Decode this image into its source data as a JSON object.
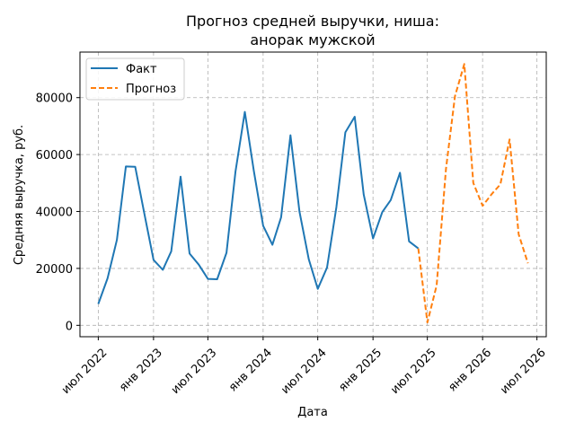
{
  "chart_data": {
    "type": "line",
    "title_lines": [
      "Прогноз средней выручки, ниша:",
      "анорак мужской"
    ],
    "xlabel": "Дата",
    "ylabel": "Средняя выручка, руб.",
    "x_ticks": [
      {
        "label": "июл 2022",
        "date": "2022-07-01"
      },
      {
        "label": "янв 2023",
        "date": "2023-01-01"
      },
      {
        "label": "июл 2023",
        "date": "2023-07-01"
      },
      {
        "label": "янв 2024",
        "date": "2024-01-01"
      },
      {
        "label": "июл 2024",
        "date": "2024-07-01"
      },
      {
        "label": "янв 2025",
        "date": "2025-01-01"
      },
      {
        "label": "июл 2025",
        "date": "2025-07-01"
      },
      {
        "label": "янв 2026",
        "date": "2026-01-01"
      },
      {
        "label": "июл 2026",
        "date": "2026-07-01"
      }
    ],
    "y_ticks": [
      0,
      20000,
      40000,
      60000,
      80000
    ],
    "xlim": [
      "2022-05-01",
      "2026-08-01"
    ],
    "ylim": [
      -4000,
      96000
    ],
    "grid": true,
    "legend_position": "top-left",
    "series": [
      {
        "name": "Факт",
        "color": "#1f77b4",
        "dash": "solid",
        "points": [
          {
            "x": "2022-07-01",
            "y": 7500
          },
          {
            "x": "2022-08-01",
            "y": 16500
          },
          {
            "x": "2022-09-01",
            "y": 30000
          },
          {
            "x": "2022-10-01",
            "y": 55800
          },
          {
            "x": "2022-11-01",
            "y": 55700
          },
          {
            "x": "2022-12-01",
            "y": 39500
          },
          {
            "x": "2023-01-01",
            "y": 23000
          },
          {
            "x": "2023-02-01",
            "y": 19500
          },
          {
            "x": "2023-03-01",
            "y": 26000
          },
          {
            "x": "2023-04-01",
            "y": 52200
          },
          {
            "x": "2023-05-01",
            "y": 25200
          },
          {
            "x": "2023-06-01",
            "y": 21300
          },
          {
            "x": "2023-07-01",
            "y": 16300
          },
          {
            "x": "2023-08-01",
            "y": 16200
          },
          {
            "x": "2023-09-01",
            "y": 25500
          },
          {
            "x": "2023-10-01",
            "y": 54000
          },
          {
            "x": "2023-11-01",
            "y": 75000
          },
          {
            "x": "2023-12-01",
            "y": 54300
          },
          {
            "x": "2024-01-01",
            "y": 35000
          },
          {
            "x": "2024-02-01",
            "y": 28300
          },
          {
            "x": "2024-03-01",
            "y": 38000
          },
          {
            "x": "2024-04-01",
            "y": 66800
          },
          {
            "x": "2024-05-01",
            "y": 40000
          },
          {
            "x": "2024-06-01",
            "y": 23200
          },
          {
            "x": "2024-07-01",
            "y": 12800
          },
          {
            "x": "2024-08-01",
            "y": 20300
          },
          {
            "x": "2024-09-01",
            "y": 41500
          },
          {
            "x": "2024-10-01",
            "y": 67800
          },
          {
            "x": "2024-11-01",
            "y": 73300
          },
          {
            "x": "2024-12-01",
            "y": 46000
          },
          {
            "x": "2025-01-01",
            "y": 30500
          },
          {
            "x": "2025-02-01",
            "y": 39800
          },
          {
            "x": "2025-03-01",
            "y": 44000
          },
          {
            "x": "2025-04-01",
            "y": 53600
          },
          {
            "x": "2025-05-01",
            "y": 29500
          },
          {
            "x": "2025-06-01",
            "y": 27000
          }
        ]
      },
      {
        "name": "Прогноз",
        "color": "#ff7f0e",
        "dash": "dashed",
        "points": [
          {
            "x": "2025-06-01",
            "y": 27000
          },
          {
            "x": "2025-07-01",
            "y": 1000
          },
          {
            "x": "2025-08-01",
            "y": 14000
          },
          {
            "x": "2025-09-01",
            "y": 55000
          },
          {
            "x": "2025-10-01",
            "y": 80500
          },
          {
            "x": "2025-11-01",
            "y": 91800
          },
          {
            "x": "2025-12-01",
            "y": 50000
          },
          {
            "x": "2026-01-01",
            "y": 42000
          },
          {
            "x": "2026-02-01",
            "y": 46200
          },
          {
            "x": "2026-03-01",
            "y": 49500
          },
          {
            "x": "2026-04-01",
            "y": 65300
          },
          {
            "x": "2026-05-01",
            "y": 32000
          },
          {
            "x": "2026-06-01",
            "y": 21800
          }
        ]
      }
    ]
  }
}
